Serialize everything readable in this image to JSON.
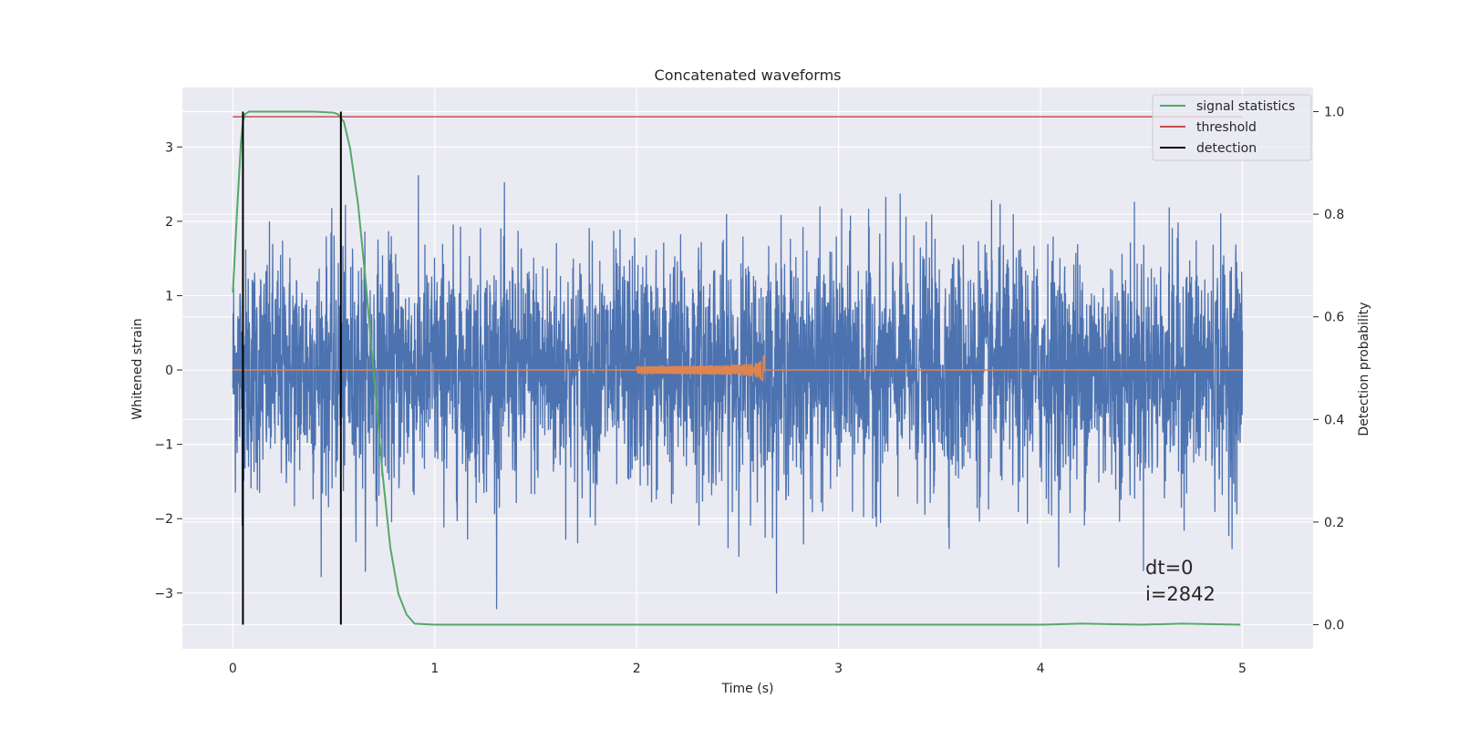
{
  "chart_data": {
    "type": "line",
    "title": "Concatenated waveforms",
    "xlabel": "Time (s)",
    "ylabel": "Whitened strain",
    "y2label": "Detection probability",
    "xlim": [
      -0.25,
      5.35
    ],
    "ylim": [
      -3.75,
      3.8
    ],
    "y2lim": [
      -0.047,
      1.047
    ],
    "x_ticks": [
      0,
      1,
      2,
      3,
      4,
      5
    ],
    "y_ticks": [
      -3,
      -2,
      -1,
      0,
      1,
      2,
      3
    ],
    "y2_ticks": [
      0.0,
      0.2,
      0.4,
      0.6,
      0.8,
      1.0
    ],
    "x_tick_labels": [
      "0",
      "1",
      "2",
      "3",
      "4",
      "5"
    ],
    "y_tick_labels": [
      "−3",
      "−2",
      "−1",
      "0",
      "1",
      "2",
      "3"
    ],
    "y2_tick_labels": [
      "0.0",
      "0.2",
      "0.4",
      "0.6",
      "0.8",
      "1.0"
    ],
    "grid": true,
    "legend_position": "top-right",
    "series": [
      {
        "name": "",
        "axis": "left",
        "color": "#4c72b0",
        "kind": "noise",
        "x_range": [
          0,
          5
        ],
        "approx_std": 0.8,
        "approx_range": [
          -3.4,
          3.45
        ]
      },
      {
        "name": "",
        "axis": "left",
        "color": "#dd8452",
        "kind": "chirp",
        "x_range": [
          0,
          5
        ],
        "chirp_start": 2.0,
        "chirp_end": 2.63,
        "peak": 0.48,
        "trough": -0.45
      },
      {
        "name": "signal statistics",
        "axis": "right",
        "color": "#55a868",
        "x": [
          0.0,
          0.02,
          0.04,
          0.05,
          0.06,
          0.08,
          0.1,
          0.2,
          0.3,
          0.4,
          0.5,
          0.52,
          0.55,
          0.58,
          0.62,
          0.66,
          0.7,
          0.74,
          0.78,
          0.82,
          0.86,
          0.9,
          1.0,
          2.0,
          3.0,
          4.0,
          4.2,
          4.5,
          4.7,
          4.99
        ],
        "y": [
          0.647,
          0.8,
          0.94,
          0.98,
          0.995,
          1.0,
          1.0,
          1.0,
          1.0,
          1.0,
          0.998,
          0.995,
          0.98,
          0.93,
          0.82,
          0.66,
          0.48,
          0.3,
          0.15,
          0.06,
          0.02,
          0.002,
          0.0,
          0.0,
          0.0,
          0.0,
          0.002,
          0.0,
          0.002,
          0.0
        ]
      },
      {
        "name": "threshold",
        "axis": "right",
        "color": "#c44e52",
        "x": [
          0,
          5
        ],
        "y": [
          0.99,
          0.99
        ]
      },
      {
        "name": "detection",
        "axis": "right",
        "color": "#000000",
        "x_positions": [
          0.05,
          0.535
        ],
        "y_span": [
          0.0,
          1.0
        ]
      }
    ],
    "annotations": [
      "dt=0",
      "i=2842"
    ],
    "colors": {
      "plot_background": "#eaeaf2",
      "grid": "#ffffff",
      "text": "#262626"
    }
  }
}
